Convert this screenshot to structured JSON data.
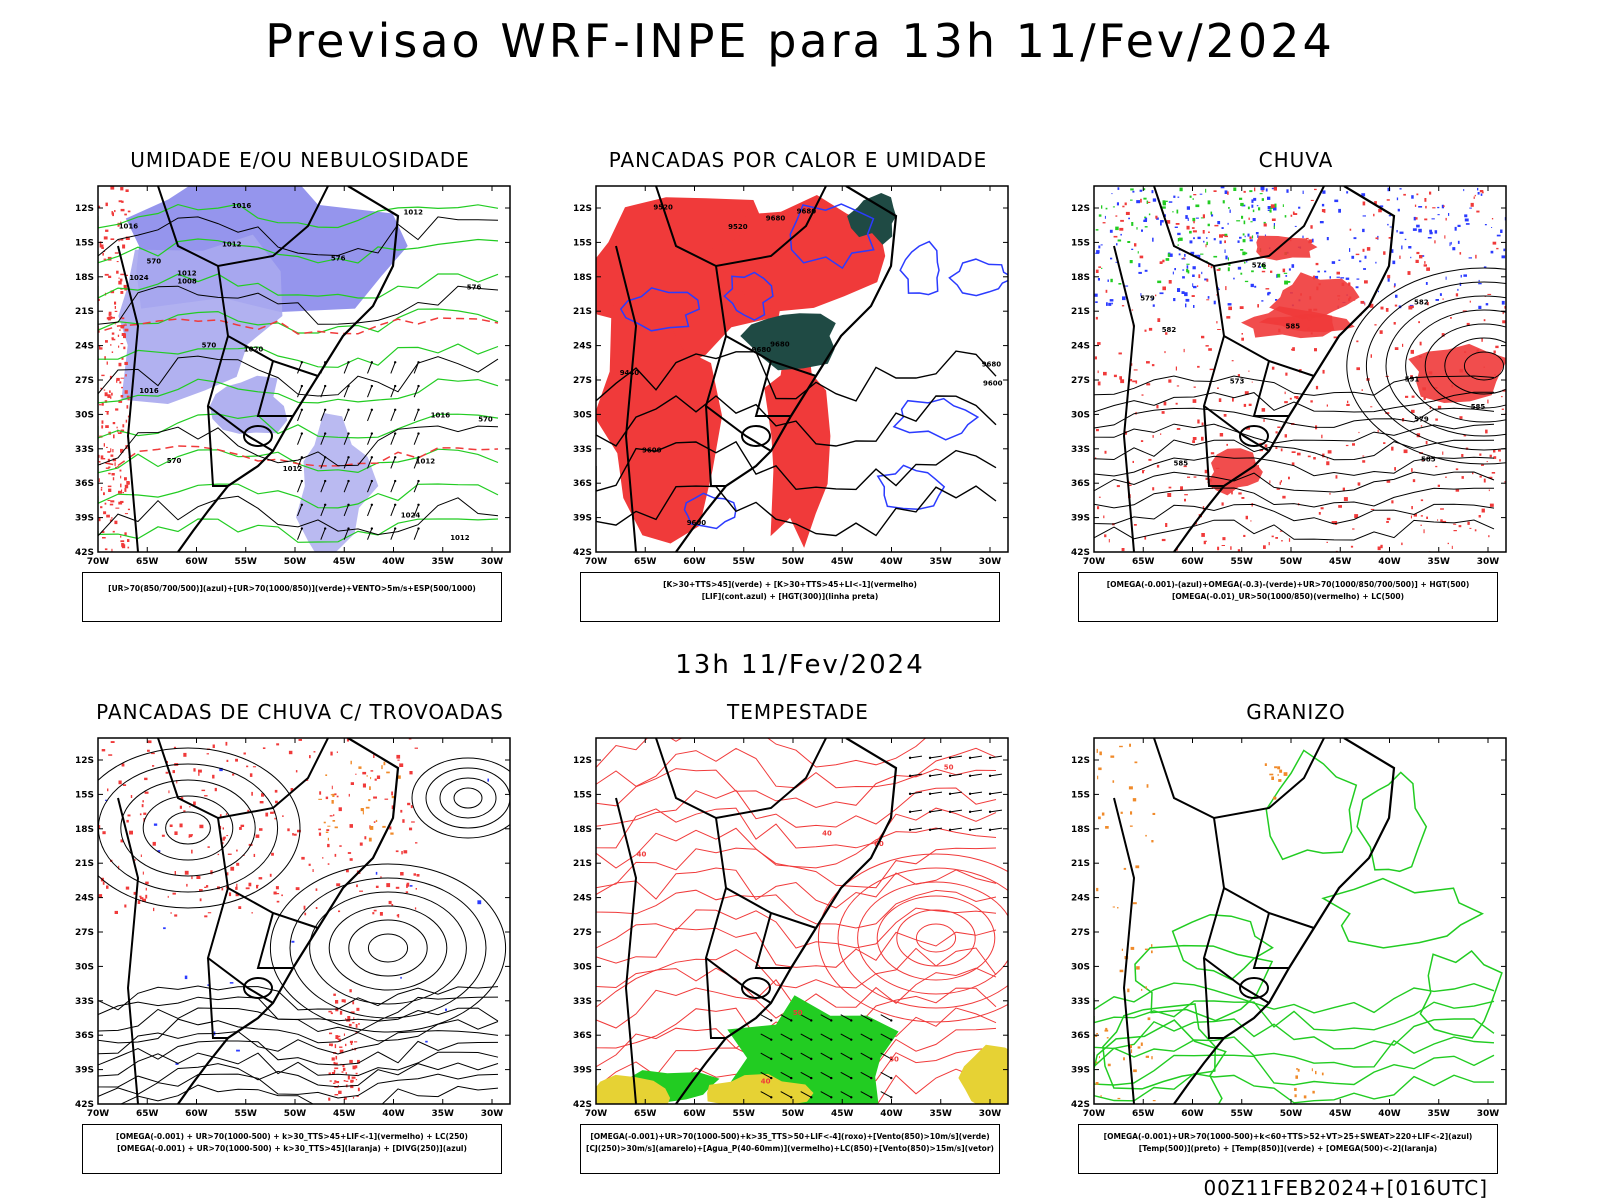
{
  "title": "Previsao WRF-INPE  para 13h 11/Fev/2024",
  "mid_title": "13h 11/Fev/2024",
  "footer": "00Z11FEB2024+[016UTC]",
  "axes": {
    "lat_labels": [
      "12S",
      "15S",
      "18S",
      "21S",
      "24S",
      "27S",
      "30S",
      "33S",
      "36S",
      "39S",
      "42S"
    ],
    "lon_labels": [
      "70W",
      "65W",
      "60W",
      "55W",
      "50W",
      "45W",
      "40W",
      "35W",
      "30W"
    ]
  },
  "colors": {
    "blue": "#2b3bff",
    "light_blue": "#a9a9ee",
    "medium_blue": "#7b7be8",
    "green": "#22cc22",
    "red": "#f03a3a",
    "dark_teal": "#1f4a44",
    "yellow": "#e6d234",
    "orange": "#f08a2a",
    "black": "#000000"
  },
  "panels": [
    {
      "id": "umidade",
      "title": "UMIDADE E/OU NEBULOSIDADE",
      "legend": [
        "[UR>70(850/700/500)](azul)+[UR>70(1000/850)](verde)+VENTO>5m/s+ESP(500/1000)"
      ],
      "contour_labels": [
        "1016",
        "1012",
        "1012",
        "1012",
        "1016",
        "1020",
        "1016",
        "1012",
        "1016",
        "1024",
        "1008",
        "1012",
        "1012",
        "1024",
        "570",
        "576",
        "570",
        "576",
        "570",
        "570"
      ]
    },
    {
      "id": "pancadas",
      "title": "PANCADAS POR CALOR E UMIDADE",
      "legend": [
        "[K>30+TTS>45](verde) + [K>30+TTS>45+LI<-1](vermelho)",
        "[LIF](cont.azul) + [HGT(300)](linha preta)"
      ],
      "contour_labels": [
        "9680",
        "9680",
        "9680",
        "9680",
        "9600",
        "9520",
        "9440",
        "9520",
        "9600",
        "9680",
        "9600"
      ]
    },
    {
      "id": "chuva",
      "title": "CHUVA",
      "legend": [
        "[OMEGA(-0.001)-(azul)+OMEGA(-0.3)-(verde)+UR>70(1000/850/700/500)] + HGT(500)",
        "[OMEGA(-0.01)_UR>50(1000/850)(vermelho) + LC(500)"
      ],
      "contour_labels": [
        "585",
        "585",
        "591",
        "585",
        "582",
        "579",
        "576",
        "573",
        "585",
        "582",
        "579"
      ]
    },
    {
      "id": "trovoadas",
      "title": "PANCADAS DE CHUVA C/ TROVOADAS",
      "legend": [
        "[OMEGA(-0.001) + UR>70(1000-500) + k>30_TTS>45+LIF<-1](vermelho) + LC(250)",
        "[OMEGA(-0.001) + UR>70(1000-500) + k>30_TTS>45](laranja) + [DIVG(250)](azul)"
      ],
      "contour_labels": []
    },
    {
      "id": "tempestade",
      "title": "TEMPESTADE",
      "legend": [
        "[OMEGA(-0.001)+UR>70(1000-500)+k>35_TTS>50+LIF<-4](roxo)+[Vento(850)>10m/s](verde)",
        "[CJ(250)>30m/s](amarelo)+[Agua_P(40-60mm)](vermelho)+LC(850)+[Vento(850)>15m/s](vetor)"
      ],
      "contour_labels": [
        "40",
        "40",
        "50",
        "50",
        "60",
        "40",
        "50"
      ]
    },
    {
      "id": "granizo",
      "title": "GRANIZO",
      "legend": [
        "[OMEGA(-0.001)+UR>70(1000-500)+k<60+TTS>52+VT>25+SWEAT>220+LIF<-2](azul)",
        "[Temp(500)](preto) + [Temp(850)](verde) + [OMEGA(500)<-2](laranja)"
      ],
      "contour_labels": []
    }
  ]
}
